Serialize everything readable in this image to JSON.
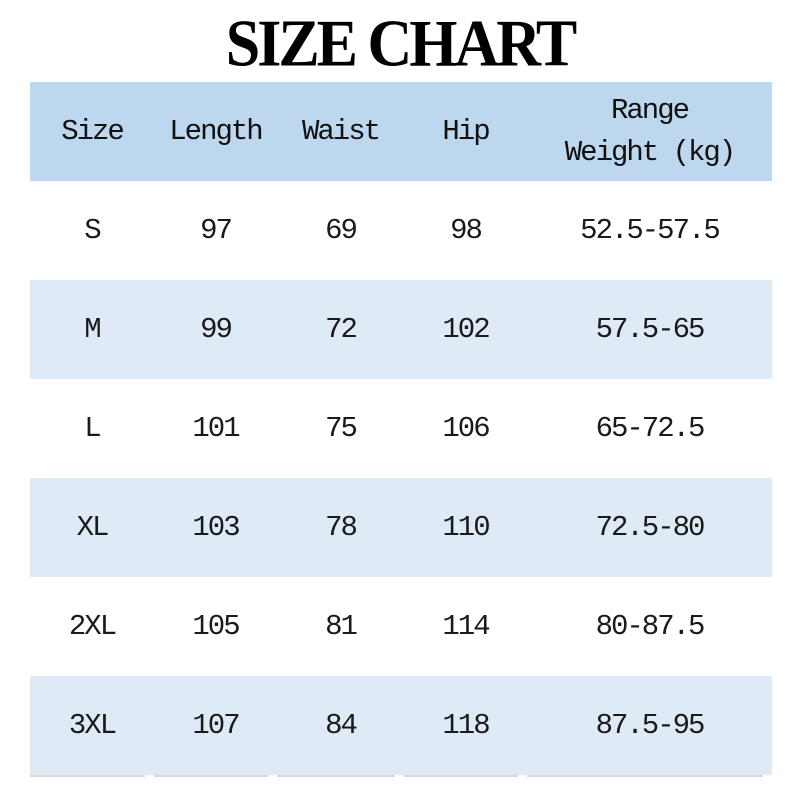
{
  "title": "SIZE CHART",
  "header": {
    "size": "Size",
    "length": "Length",
    "waist": "Waist",
    "hip": "Hip",
    "range_line1": "Range",
    "range_line2": "Weight (kg)"
  },
  "chart_data": {
    "type": "table",
    "title": "SIZE CHART",
    "columns": [
      "Size",
      "Length",
      "Waist",
      "Hip",
      "Range Weight (kg)"
    ],
    "rows": [
      [
        "S",
        97,
        69,
        98,
        "52.5-57.5"
      ],
      [
        "M",
        99,
        72,
        102,
        "57.5-65"
      ],
      [
        "L",
        101,
        75,
        106,
        "65-72.5"
      ],
      [
        "XL",
        103,
        78,
        110,
        "72.5-80"
      ],
      [
        "2XL",
        105,
        81,
        114,
        "80-87.5"
      ],
      [
        "3XL",
        107,
        84,
        118,
        "87.5-95"
      ]
    ],
    "layout": {
      "row_banding": [
        "white",
        "blue",
        "white",
        "blue",
        "white",
        "blue"
      ],
      "header_bg": "#bdd7ee",
      "band_bg": "#deebf7"
    }
  },
  "colors": {
    "header_bg": "#bdd7ee",
    "band_bg": "#deebf7",
    "row_bg": "#ffffff",
    "title_text": "#000000",
    "body_text": "#1a1a1a",
    "gridline": "#d9d9d9"
  }
}
